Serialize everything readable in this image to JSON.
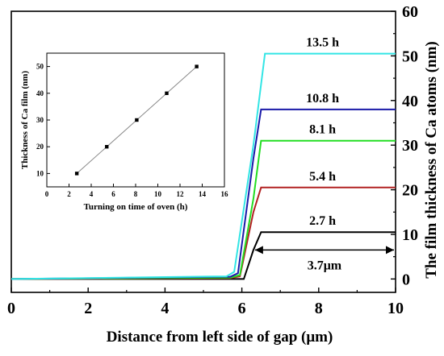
{
  "chart_data": [
    {
      "type": "line",
      "xlabel": "Distance from left side of gap  (μm)",
      "ylabel": "The film thickness of Ca atoms  (nm)",
      "xlim": [
        0,
        10
      ],
      "ylim": [
        -3,
        60
      ],
      "x_ticks": [
        0,
        2,
        4,
        6,
        8,
        10
      ],
      "y_ticks": [
        0,
        10,
        20,
        30,
        40,
        50,
        60
      ],
      "y_axis_side": "right",
      "grid": false,
      "legend": "none",
      "series": [
        {
          "name": "2.7 h",
          "color": "#000000",
          "x": [
            0,
            5.95,
            6.05,
            6.3,
            6.5,
            10
          ],
          "y": [
            0,
            0,
            0,
            6.5,
            10.5,
            10.5
          ]
        },
        {
          "name": "5.4 h",
          "color": "#b22222",
          "x": [
            0,
            5.7,
            5.95,
            6.3,
            6.5,
            10
          ],
          "y": [
            0,
            0.2,
            0.6,
            15,
            20.5,
            20.5
          ]
        },
        {
          "name": "8.1 h",
          "color": "#22dd22",
          "x": [
            0,
            5.7,
            5.95,
            6.3,
            6.5,
            10
          ],
          "y": [
            0,
            0.3,
            0.9,
            18,
            31,
            31
          ]
        },
        {
          "name": "10.8 h",
          "color": "#1a1aa8",
          "x": [
            0,
            5.7,
            5.9,
            6.3,
            6.5,
            10
          ],
          "y": [
            0,
            0.5,
            1.3,
            27,
            38,
            38
          ]
        },
        {
          "name": "13.5 h",
          "color": "#33e5e5",
          "x": [
            0,
            5.6,
            5.8,
            6.3,
            6.6,
            10
          ],
          "y": [
            0,
            0.6,
            1.6,
            30,
            50.5,
            50.5
          ]
        }
      ],
      "annotations": [
        {
          "text": "3.7μm",
          "from_x": 6.3,
          "to_x": 10,
          "y": 6.5
        }
      ]
    },
    {
      "type": "scatter",
      "xlabel": "Turning on time of oven (h)",
      "ylabel": "Thickness of Ca film (nm)",
      "xlim": [
        0,
        16
      ],
      "ylim": [
        5,
        55
      ],
      "x_ticks": [
        0,
        2,
        4,
        6,
        8,
        10,
        12,
        14,
        16
      ],
      "y_ticks": [
        10,
        20,
        30,
        40,
        50
      ],
      "x": [
        2.7,
        5.4,
        8.1,
        10.8,
        13.5
      ],
      "y": [
        10,
        20,
        30,
        40,
        50
      ],
      "fit_line": true,
      "grid": false
    }
  ]
}
